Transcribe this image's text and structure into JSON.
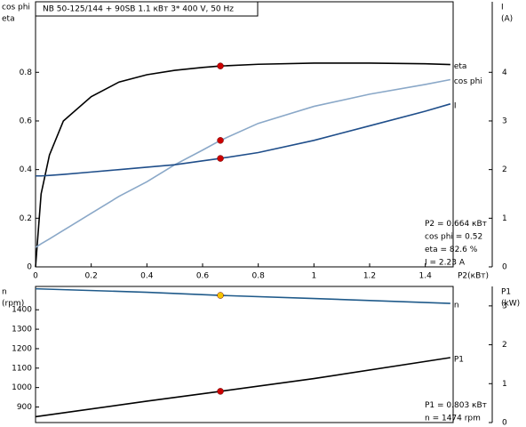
{
  "chart_data": [
    {
      "type": "line",
      "title": "NB 50-125/144 + 90SB    1.1 кВт    3* 400 V, 50 Hz",
      "ylabel": [
        "cos phi",
        "eta"
      ],
      "y2label": [
        "I",
        "(A)"
      ],
      "xlabel": "P2(кВт)",
      "xlim": [
        0,
        1.5
      ],
      "xticks": [
        0,
        0.2,
        0.4,
        0.6,
        0.8,
        1,
        1.2,
        1.4
      ],
      "ylim": [
        0,
        1.09
      ],
      "yticks": [
        0,
        0.2,
        0.4,
        0.6,
        0.8
      ],
      "y2lim": [
        0,
        5.45
      ],
      "y2ticks": [
        0,
        1,
        2,
        3,
        4
      ],
      "grid": false,
      "operating_point_x": 0.664,
      "x": [
        0,
        0.02,
        0.05,
        0.1,
        0.2,
        0.3,
        0.4,
        0.5,
        0.6,
        0.664,
        0.8,
        1.0,
        1.2,
        1.4,
        1.49
      ],
      "series": [
        {
          "name": "eta",
          "color": "#000000",
          "marker_color": "#cc0000",
          "marker_value": 0.826,
          "values": [
            0,
            0.3,
            0.46,
            0.6,
            0.7,
            0.76,
            0.79,
            0.808,
            0.82,
            0.826,
            0.833,
            0.838,
            0.838,
            0.835,
            0.832
          ]
        },
        {
          "name": "cos phi",
          "color": "#8aa8c8",
          "marker_color": "#cc0000",
          "marker_value": 0.52,
          "values": [
            0.08,
            0.095,
            0.115,
            0.15,
            0.22,
            0.29,
            0.35,
            0.42,
            0.48,
            0.52,
            0.59,
            0.66,
            0.71,
            0.75,
            0.77
          ]
        },
        {
          "name": "I",
          "color": "#1f4e8a",
          "axis": "y2",
          "marker_color": "#cc0000",
          "marker_value": 2.23,
          "values": [
            1.87,
            1.87,
            1.88,
            1.9,
            1.95,
            2.0,
            2.05,
            2.1,
            2.18,
            2.23,
            2.35,
            2.6,
            2.9,
            3.2,
            3.35
          ]
        }
      ],
      "annotations": [
        "P2  = 0.664 кВт",
        "cos phi = 0.52",
        "eta   = 82.6 %",
        "I   = 2.23 A"
      ]
    },
    {
      "type": "line",
      "ylabel": [
        "n",
        "(rpm)"
      ],
      "y2label": [
        "P1",
        "(kW)"
      ],
      "xlim": [
        0,
        1.5
      ],
      "ylim": [
        820,
        1520
      ],
      "yticks": [
        900,
        1000,
        1100,
        1200,
        1300,
        1400
      ],
      "y2lim": [
        0,
        3.5
      ],
      "y2ticks": [
        0,
        1,
        2,
        3
      ],
      "grid": false,
      "operating_point_x": 0.664,
      "x": [
        0,
        0.4,
        0.664,
        1.0,
        1.49
      ],
      "series": [
        {
          "name": "n",
          "color": "#1f5a8a",
          "marker_color": "#f5c400",
          "marker_value": 1474,
          "values": [
            1508,
            1490,
            1474,
            1458,
            1433
          ]
        },
        {
          "name": "P1",
          "color": "#000000",
          "axis": "y2",
          "marker_color": "#cc0000",
          "marker_value": 0.803,
          "values": [
            0.15,
            0.55,
            0.803,
            1.13,
            1.67
          ]
        }
      ],
      "annotations": [
        "P1  = 0.803 кВт",
        "n   = 1474 rpm"
      ]
    }
  ]
}
